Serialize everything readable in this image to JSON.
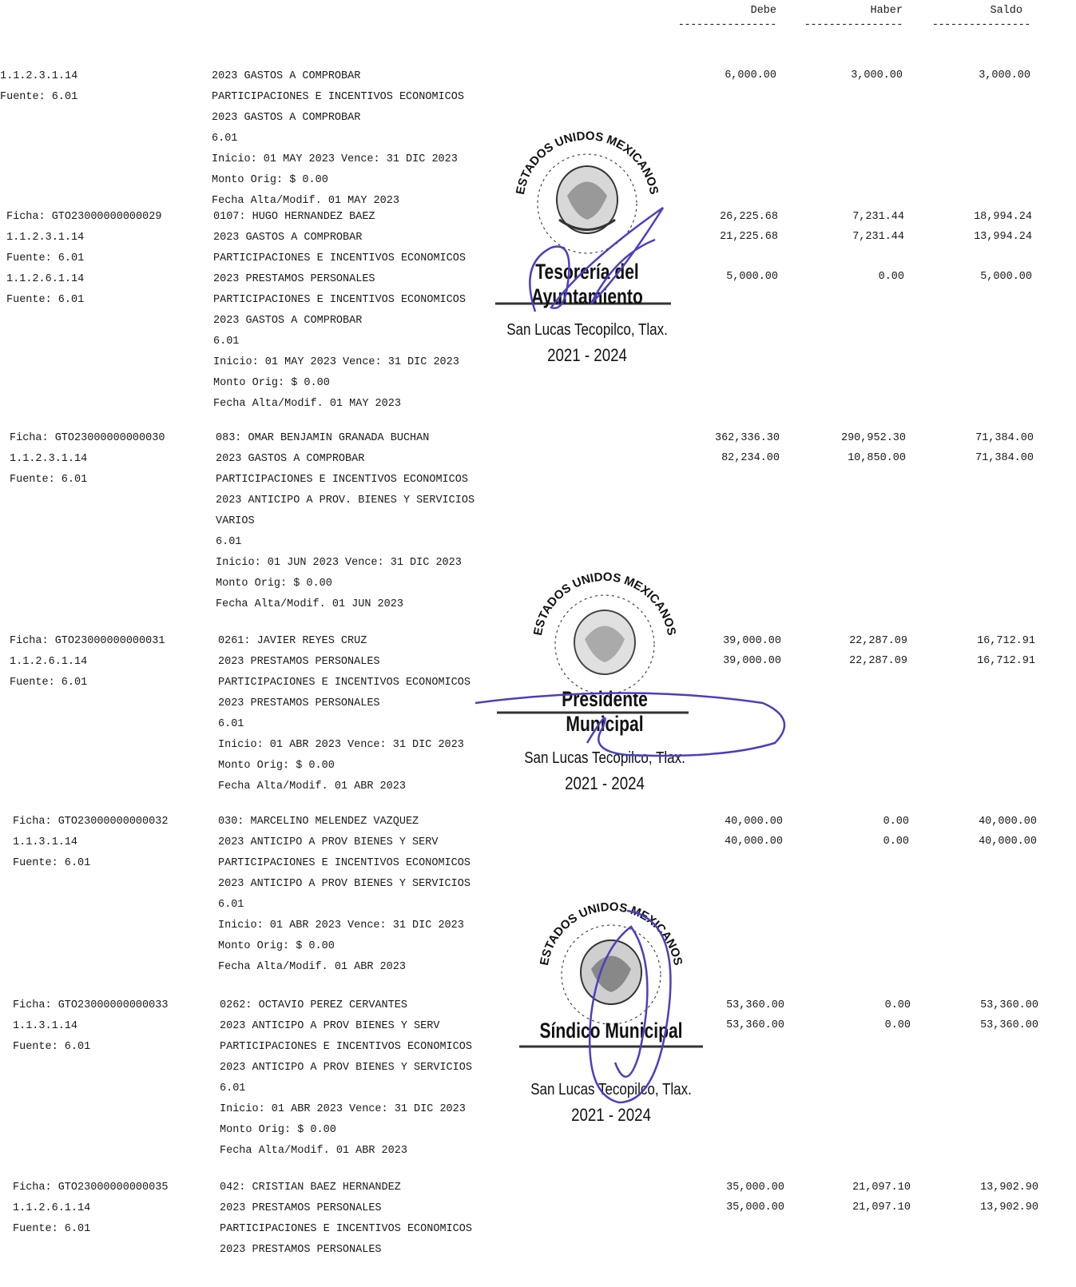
{
  "header": {
    "debe": "Debe",
    "haber": "Haber",
    "saldo": "Saldo",
    "dashes": "----------------"
  },
  "entries": [
    {
      "left": [
        "",
        "1.1.2.3.1.14",
        "Fuente: 6.01"
      ],
      "lines": [
        "",
        "2023 GASTOS A COMPROBAR",
        "PARTICIPACIONES E INCENTIVOS ECONOMICOS",
        "2023 GASTOS A COMPROBAR",
        "6.01",
        "Inicio: 01 MAY 2023 Vence: 31 DIC 2023",
        "Monto Orig: $ 0.00",
        "Fecha Alta/Modif. 01 MAY 2023"
      ],
      "amounts": [
        [
          "",
          "",
          ""
        ],
        [
          "6,000.00",
          "3,000.00",
          "3,000.00"
        ]
      ]
    },
    {
      "left": [
        "Ficha: GTO23000000000029",
        "1.1.2.3.1.14",
        "Fuente: 6.01",
        "1.1.2.6.1.14",
        "Fuente: 6.01"
      ],
      "lines": [
        "0107: HUGO HERNANDEZ BAEZ",
        "2023 GASTOS A COMPROBAR",
        "PARTICIPACIONES E INCENTIVOS ECONOMICOS",
        "2023 PRESTAMOS PERSONALES",
        "PARTICIPACIONES E INCENTIVOS ECONOMICOS",
        "2023 GASTOS A COMPROBAR",
        "6.01",
        "Inicio: 01 MAY 2023 Vence: 31 DIC 2023",
        "Monto Orig: $ 0.00",
        "Fecha Alta/Modif. 01 MAY 2023"
      ],
      "amounts": [
        [
          "26,225.68",
          "7,231.44",
          "18,994.24"
        ],
        [
          "21,225.68",
          "7,231.44",
          "13,994.24"
        ],
        [
          "",
          "",
          ""
        ],
        [
          "5,000.00",
          "0.00",
          "5,000.00"
        ]
      ]
    },
    {
      "left": [
        "Ficha: GTO23000000000030",
        "1.1.2.3.1.14",
        "Fuente: 6.01"
      ],
      "lines": [
        "083: OMAR BENJAMIN GRANADA BUCHAN",
        "2023 GASTOS A COMPROBAR",
        "PARTICIPACIONES E INCENTIVOS ECONOMICOS",
        "2023 ANTICIPO A PROV. BIENES Y SERVICIOS",
        "VARIOS",
        "6.01",
        "Inicio: 01 JUN 2023 Vence: 31 DIC 2023",
        "Monto Orig: $ 0.00",
        "Fecha Alta/Modif. 01 JUN 2023"
      ],
      "amounts": [
        [
          "362,336.30",
          "290,952.30",
          "71,384.00"
        ],
        [
          "82,234.00",
          "10,850.00",
          "71,384.00"
        ]
      ]
    },
    {
      "left": [
        "Ficha: GTO23000000000031",
        "1.1.2.6.1.14",
        "Fuente: 6.01"
      ],
      "lines": [
        "0261: JAVIER REYES CRUZ",
        "2023 PRESTAMOS PERSONALES",
        "PARTICIPACIONES E INCENTIVOS ECONOMICOS",
        "2023 PRESTAMOS PERSONALES",
        "6.01",
        "Inicio: 01 ABR 2023 Vence: 31 DIC 2023",
        "Monto Orig: $ 0.00",
        "Fecha Alta/Modif. 01 ABR 2023"
      ],
      "amounts": [
        [
          "39,000.00",
          "22,287.09",
          "16,712.91"
        ],
        [
          "39,000.00",
          "22,287.09",
          "16,712.91"
        ]
      ]
    },
    {
      "left": [
        "Ficha: GTO23000000000032",
        "1.1.3.1.14",
        "Fuente: 6.01"
      ],
      "lines": [
        "030: MARCELINO MELENDEZ VAZQUEZ",
        "2023 ANTICIPO A PROV BIENES Y SERV",
        "PARTICIPACIONES E INCENTIVOS ECONOMICOS",
        "2023 ANTICIPO A PROV BIENES Y SERVICIOS",
        "6.01",
        "Inicio: 01 ABR 2023 Vence: 31 DIC 2023",
        "Monto Orig: $ 0.00",
        "Fecha Alta/Modif. 01 ABR 2023"
      ],
      "amounts": [
        [
          "40,000.00",
          "0.00",
          "40,000.00"
        ],
        [
          "40,000.00",
          "0.00",
          "40,000.00"
        ]
      ]
    },
    {
      "left": [
        "Ficha: GTO23000000000033",
        "1.1.3.1.14",
        "Fuente: 6.01"
      ],
      "lines": [
        "0262: OCTAVIO PEREZ CERVANTES",
        "2023 ANTICIPO A PROV BIENES Y SERV",
        "PARTICIPACIONES E INCENTIVOS ECONOMICOS",
        "2023 ANTICIPO A PROV BIENES Y SERVICIOS",
        "6.01",
        "Inicio: 01 ABR 2023 Vence: 31 DIC 2023",
        "Monto Orig: $ 0.00",
        "Fecha Alta/Modif. 01 ABR 2023"
      ],
      "amounts": [
        [
          "53,360.00",
          "0.00",
          "53,360.00"
        ],
        [
          "53,360.00",
          "0.00",
          "53,360.00"
        ]
      ]
    },
    {
      "left": [
        "Ficha: GTO23000000000035",
        "1.1.2.6.1.14",
        "Fuente: 6.01"
      ],
      "lines": [
        "042: CRISTIAN BAEZ HERNANDEZ",
        "2023 PRESTAMOS PERSONALES",
        "PARTICIPACIONES E INCENTIVOS ECONOMICOS",
        "2023 PRESTAMOS PERSONALES"
      ],
      "amounts": [
        [
          "35,000.00",
          "21,097.10",
          "13,902.90"
        ],
        [
          "35,000.00",
          "21,097.10",
          "13,902.90"
        ]
      ]
    }
  ],
  "stamps": [
    {
      "arc": "ESTADOS UNIDOS MEXICANOS",
      "title": "Tesorería del Ayuntamiento",
      "place": "San Lucas Tecopilco, Tlax.",
      "years": "2021 - 2024"
    },
    {
      "arc": "ESTADOS UNIDOS MEXICANOS",
      "title": "Presidente Municipal",
      "place": "San Lucas Tecopilco, Tlax.",
      "years": "2021 - 2024"
    },
    {
      "arc": "ESTADOS UNIDOS MEXICANOS",
      "title": "Síndico Municipal",
      "place": "San Lucas Tecopilco, Tlax.",
      "years": "2021 - 2024"
    }
  ],
  "colors": {
    "ink": "#1a1a1a",
    "signature": "#4a3fc0"
  }
}
